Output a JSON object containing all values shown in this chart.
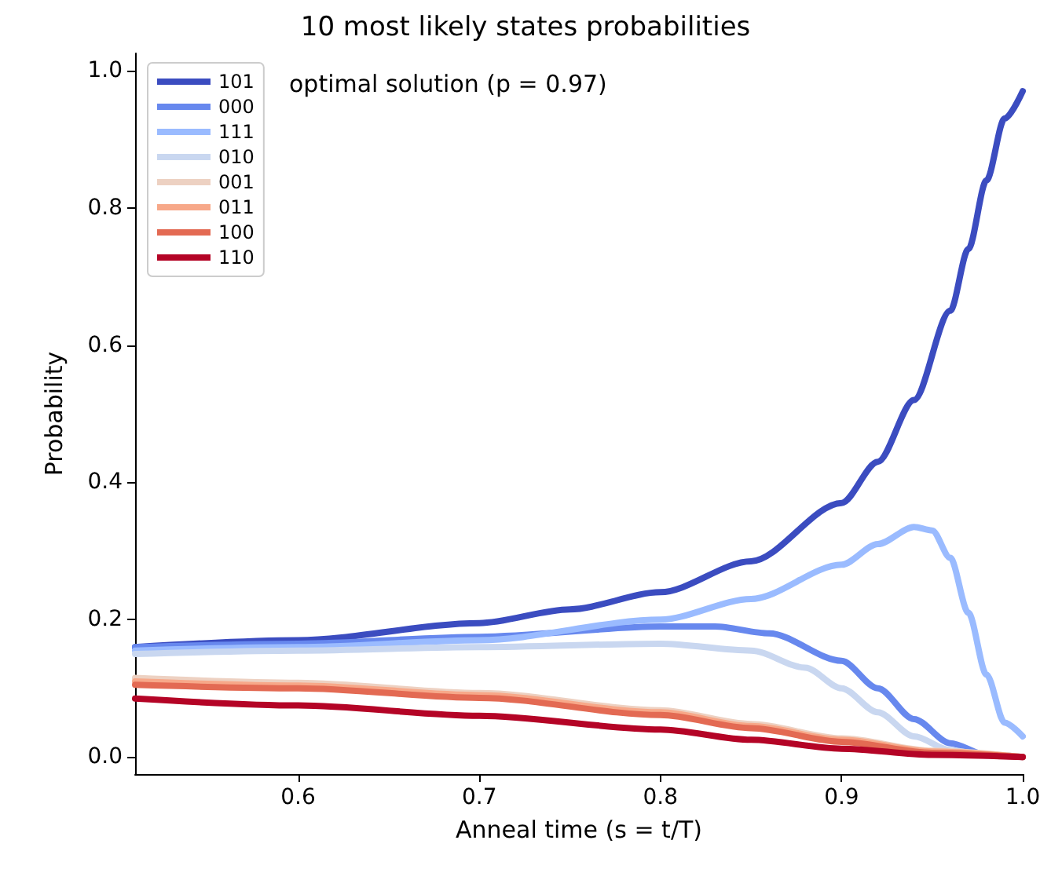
{
  "chart_data": {
    "type": "line",
    "title": "10 most likely states probabilities",
    "xlabel": "Anneal time (s = t/T)",
    "ylabel": "Probability",
    "annotations": [
      "optimal solution (p = 0.97)"
    ],
    "xlim": [
      0.51,
      1.0
    ],
    "xticks": [
      {
        "value": 0.6,
        "label": "0.6"
      },
      {
        "value": 0.7,
        "label": "0.7"
      },
      {
        "value": 0.8,
        "label": "0.8"
      },
      {
        "value": 0.9,
        "label": "0.9"
      },
      {
        "value": 1.0,
        "label": "1.0"
      }
    ],
    "ylim": [
      -0.025,
      1.025
    ],
    "yticks": [
      {
        "value": 0,
        "label": "0.0"
      },
      {
        "value": 0.2,
        "label": "0.2"
      },
      {
        "value": 0.4,
        "label": "0.4"
      },
      {
        "value": 0.6,
        "label": "0.6"
      },
      {
        "value": 0.8,
        "label": "0.8"
      },
      {
        "value": 1.0,
        "label": "1.0"
      }
    ],
    "grid": false,
    "legend": "top left",
    "marker": "none",
    "line_style": "solid",
    "series": [
      {
        "name": "101",
        "color": "#3b4cc0",
        "x": [
          0.51,
          0.6,
          0.7,
          0.75,
          0.8,
          0.85,
          0.9,
          0.92,
          0.94,
          0.96,
          0.97,
          0.98,
          0.99,
          1.0
        ],
        "values": [
          0.16,
          0.17,
          0.195,
          0.215,
          0.24,
          0.285,
          0.37,
          0.43,
          0.52,
          0.65,
          0.74,
          0.84,
          0.93,
          0.97
        ]
      },
      {
        "name": "000",
        "color": "#6788ee",
        "x": [
          0.51,
          0.6,
          0.7,
          0.8,
          0.83,
          0.86,
          0.9,
          0.92,
          0.94,
          0.96,
          0.98,
          1.0
        ],
        "values": [
          0.16,
          0.165,
          0.175,
          0.19,
          0.19,
          0.18,
          0.14,
          0.1,
          0.055,
          0.02,
          0.003,
          0
        ]
      },
      {
        "name": "111",
        "color": "#9abbff",
        "x": [
          0.51,
          0.6,
          0.7,
          0.8,
          0.85,
          0.9,
          0.92,
          0.94,
          0.95,
          0.96,
          0.97,
          0.98,
          0.99,
          1.0
        ],
        "values": [
          0.155,
          0.16,
          0.17,
          0.2,
          0.23,
          0.28,
          0.31,
          0.335,
          0.33,
          0.29,
          0.21,
          0.12,
          0.05,
          0.03
        ]
      },
      {
        "name": "010",
        "color": "#c9d7f0",
        "x": [
          0.51,
          0.6,
          0.7,
          0.8,
          0.85,
          0.88,
          0.9,
          0.92,
          0.94,
          0.96,
          0.98,
          1.0
        ],
        "values": [
          0.15,
          0.155,
          0.16,
          0.165,
          0.155,
          0.13,
          0.1,
          0.065,
          0.03,
          0.01,
          0.002,
          0
        ]
      },
      {
        "name": "001",
        "color": "#edd1c2",
        "x": [
          0.51,
          0.6,
          0.7,
          0.8,
          0.85,
          0.9,
          0.95,
          1.0
        ],
        "values": [
          0.115,
          0.108,
          0.093,
          0.068,
          0.048,
          0.027,
          0.009,
          0
        ]
      },
      {
        "name": "011",
        "color": "#f7a889",
        "x": [
          0.51,
          0.6,
          0.7,
          0.8,
          0.85,
          0.9,
          0.95,
          1.0
        ],
        "values": [
          0.11,
          0.104,
          0.09,
          0.065,
          0.045,
          0.025,
          0.008,
          0
        ]
      },
      {
        "name": "100",
        "color": "#e36a53",
        "x": [
          0.51,
          0.6,
          0.7,
          0.8,
          0.85,
          0.9,
          0.95,
          1.0
        ],
        "values": [
          0.105,
          0.1,
          0.086,
          0.061,
          0.042,
          0.022,
          0.006,
          0
        ]
      },
      {
        "name": "110",
        "color": "#b40426",
        "x": [
          0.51,
          0.6,
          0.7,
          0.8,
          0.85,
          0.9,
          0.95,
          1.0
        ],
        "values": [
          0.085,
          0.075,
          0.06,
          0.04,
          0.025,
          0.012,
          0.003,
          0
        ]
      }
    ]
  }
}
